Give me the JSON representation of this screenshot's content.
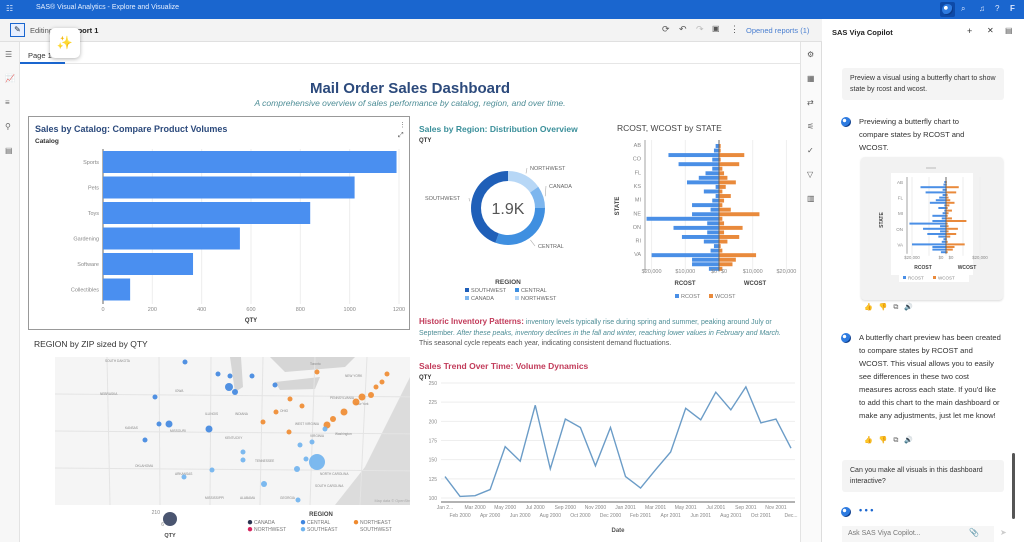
{
  "app": {
    "title": "SAS® Visual Analytics - Explore and Visualize",
    "user_initial": "F"
  },
  "toolbar": {
    "mode": "Editing",
    "report": "Report 1",
    "opened_reports": "Opened reports (1)"
  },
  "page_tab": "Page 1",
  "dashboard": {
    "title": "Mail Order Sales Dashboard",
    "subtitle": "A comprehensive overview of sales performance by catalog, region, and over time.",
    "note_title": "Historic Inventory Patterns:",
    "note_p1": " inventory levels typically rise during spring and summer, peaking around July or September. ",
    "note_p2": "After these peaks, inventory declines in the fall and winter, reaching lower values in February and March.",
    "note_p3": " This seasonal cycle repeats each year, indicating consistent demand fluctuations."
  },
  "chart_data": [
    {
      "type": "bar",
      "title": "Sales by Catalog: Compare Product Volumes",
      "ylabel": "Catalog",
      "xlabel": "QTY",
      "categories": [
        "Sports",
        "Pets",
        "Toys",
        "Gardening",
        "Software",
        "Collectibles"
      ],
      "values": [
        1190,
        1020,
        840,
        555,
        365,
        110
      ],
      "xlim": [
        0,
        1200
      ],
      "ticks": [
        "0",
        "200",
        "400",
        "600",
        "800",
        "1000",
        "1200"
      ]
    },
    {
      "type": "pie",
      "title": "Sales by Region: Distribution Overview",
      "measure": "QTY",
      "center_label": "1.9K",
      "legend_title": "REGION",
      "categories": [
        "SOUTHWEST",
        "CENTRAL",
        "CANADA",
        "NORTHWEST"
      ],
      "values": [
        845,
        580,
        185,
        290
      ],
      "colors": [
        "#1f5fb8",
        "#3f8fe0",
        "#7db6ee",
        "#b7d7f6"
      ]
    },
    {
      "type": "bar",
      "title": "RCOST, WCOST by STATE",
      "ylabel": "STATE",
      "xlabel_left": "RCOST",
      "xlabel_right": "WCOST",
      "tick_labels": [
        "AB",
        "CO",
        "FL",
        "KS",
        "MI",
        "NE",
        "ON",
        "RI",
        "VA"
      ],
      "rcost": [
        1000,
        1500,
        15000,
        2000,
        12000,
        2000,
        4000,
        6000,
        9500,
        1000,
        4500,
        1000,
        2000,
        8000,
        2500,
        8000,
        21500,
        3500,
        13500,
        3500,
        11000,
        4500,
        1500,
        2500,
        20000,
        8000,
        8000,
        3000
      ],
      "wcost": [
        500,
        500,
        7500,
        500,
        6000,
        1000,
        1500,
        2500,
        5000,
        2000,
        1000,
        3500,
        1500,
        1000,
        3500,
        12000,
        1000,
        1500,
        7000,
        1500,
        6000,
        2500,
        500,
        1000,
        11000,
        5000,
        4000,
        1000
      ],
      "axis_ticks": [
        "$20,000",
        "$10,000",
        "$0",
        "$0",
        "$10,000",
        "$20,000"
      ],
      "legend": [
        "RCOST",
        "WCOST"
      ],
      "colors": [
        "#4a8fe6",
        "#e98a3c"
      ]
    },
    {
      "type": "line",
      "title": "Sales Trend Over Time: Volume Dynamics",
      "ylabel": "QTY",
      "xlabel": "Date",
      "ylim": [
        100,
        250
      ],
      "yticks": [
        "100",
        "125",
        "150",
        "175",
        "200",
        "225",
        "250"
      ],
      "x": [
        "Jan 2...",
        "Feb 2000",
        "Mar 2000",
        "Apr 2000",
        "May 2000",
        "Jun 2000",
        "Jul 2000",
        "Aug 2000",
        "Sep 2000",
        "Oct 2000",
        "Nov 2000",
        "Dec 2000",
        "Jan 2001",
        "Feb 2001",
        "Mar 2001",
        "Apr 2001",
        "May 2001",
        "Jun 2001",
        "Jul 2001",
        "Aug 2001",
        "Sep 2001",
        "Oct 2001",
        "Nov 2001",
        "Dec..."
      ],
      "values": [
        128,
        102,
        103,
        111,
        167,
        148,
        221,
        138,
        203,
        192,
        142,
        192,
        128,
        113,
        137,
        160,
        217,
        202,
        238,
        215,
        245,
        198,
        203,
        165
      ]
    },
    {
      "type": "scatter",
      "title": "REGION by ZIP sized by QTY",
      "size_legend": {
        "title": "QTY",
        "max": "210",
        "min": "6"
      },
      "legend_title": "REGION",
      "legend": [
        "CANADA",
        "CENTRAL",
        "NORTHEAST",
        "NORTHWEST",
        "SOUTHEAST",
        "SOUTHWEST"
      ],
      "colors": {
        "CANADA": "#2a3350",
        "CENTRAL": "#3f86e0",
        "NORTHEAST": "#ef8a2e",
        "NORTHWEST": "#d6245e",
        "SOUTHEAST": "#6fb3ee",
        "SOUTHWEST": "#ffffff"
      },
      "map_labels": [
        "SOUTH DAKOTA",
        "NEBRASKA",
        "IOWA",
        "ILLINOIS",
        "INDIANA",
        "OHIO",
        "PENNSYLVANIA",
        "NEW YORK",
        "KANSAS",
        "MISSOURI",
        "KENTUCKY",
        "WEST VIRGINIA",
        "VIRGINIA",
        "TENNESSEE",
        "OKLAHOMA",
        "ARKANSAS",
        "NORTH CAROLINA",
        "SOUTH CAROLINA",
        "MISSISSIPPI",
        "ALABAMA",
        "GEORGIA",
        "Toronto",
        "New York",
        "Washington"
      ],
      "attribution": "Map data © OpenStreetMap"
    }
  ],
  "copilot": {
    "title": "SAS Viya Copilot",
    "user_msg_1": "Preview a visual using a butterfly chart to show state by rcost and wcost.",
    "bot_msg_1": "Previewing a butterfly chart to compare states by RCOST and WCOST.",
    "preview": {
      "ylabel": "STATE",
      "labels": [
        "AB",
        "FL",
        "MI",
        "ON",
        "VA"
      ],
      "ticks": [
        "$20,000",
        "$0",
        "$0",
        "$20,000"
      ],
      "xl": "RCOST",
      "xr": "WCOST",
      "legend": [
        "RCOST",
        "WCOST"
      ]
    },
    "bot_msg_2": "A butterfly chart preview has been created to compare states by RCOST and WCOST. This visual allows you to easily see differences in these two cost measures across each state. If you'd like to add this chart to the main dashboard or make any adjustments, just let me know!",
    "user_msg_2": "Can you make all visuals in this dashboard interactive?",
    "typing": "• • •",
    "input_placeholder": "Ask SAS Viya Copilot..."
  }
}
